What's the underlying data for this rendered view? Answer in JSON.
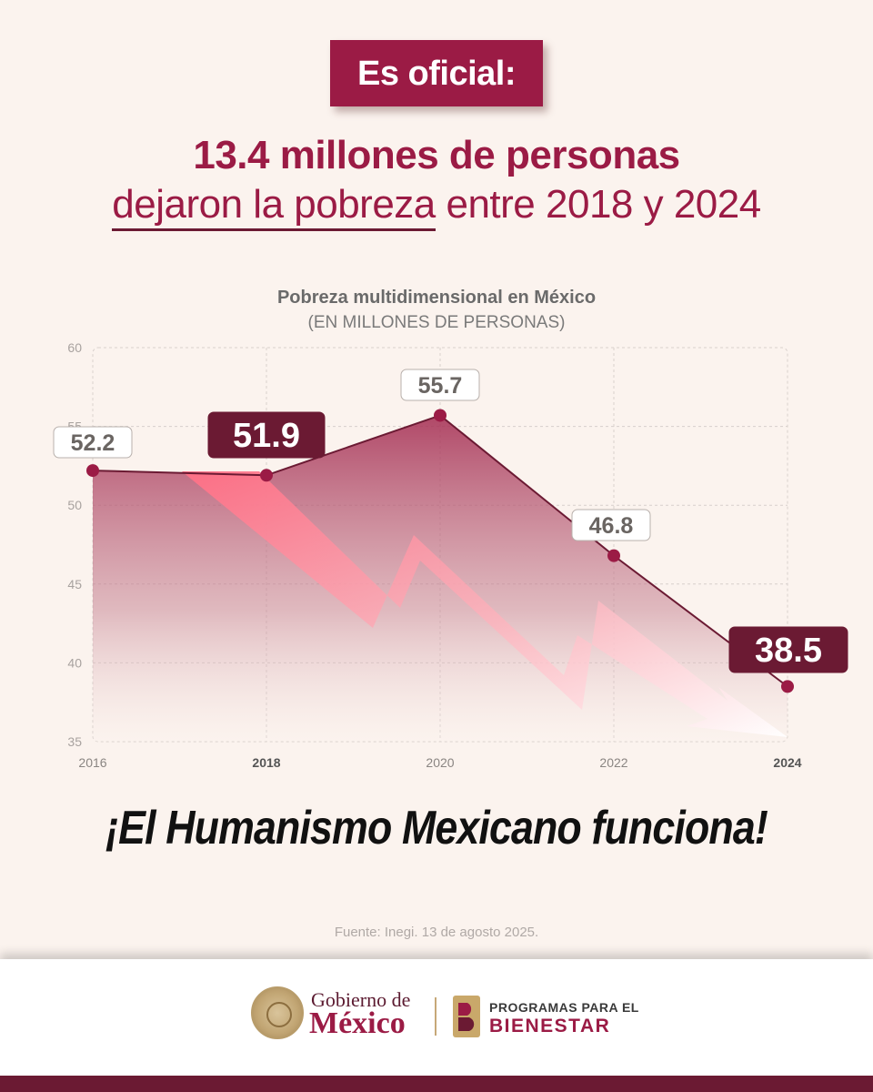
{
  "header": {
    "tag": "Es oficial:",
    "headline": "13.4 millones de personas",
    "subline_underlined": "dejaron la pobreza",
    "subline_rest": " entre 2018 y 2024"
  },
  "chart_data": {
    "type": "area",
    "title": "Pobreza multidimensional en México",
    "subtitle": "(EN MILLONES DE PERSONAS)",
    "x": [
      "2016",
      "2018",
      "2020",
      "2022",
      "2024"
    ],
    "series": [
      {
        "values": [
          52.2,
          51.9,
          55.7,
          46.8,
          38.5
        ]
      }
    ],
    "highlighted": [
      "2018",
      "2024"
    ],
    "value_labels": [
      "52.2",
      "51.9",
      "55.7",
      "46.8",
      "38.5"
    ],
    "yticks": [
      "35",
      "40",
      "45",
      "50",
      "55",
      "60"
    ],
    "ylim": [
      35,
      60
    ],
    "grid": true,
    "colors": {
      "line": "#6b1a33",
      "point": "#9b1b45",
      "fill_top": "#a3294f",
      "highlight_label": "#6b1a33",
      "arrow": "#ff8a9a"
    }
  },
  "slogan": "¡El Humanismo Mexicano funciona!",
  "source": "Fuente: Inegi. 13 de agosto 2025.",
  "footer": {
    "gov_top": "Gobierno de",
    "gov_main": "México",
    "prog_top": "PROGRAMAS PARA EL",
    "prog_main": "BIENESTAR",
    "seal_icon": "coat-of-arms-icon",
    "bienestar_icon": "bienestar-logo-icon"
  }
}
